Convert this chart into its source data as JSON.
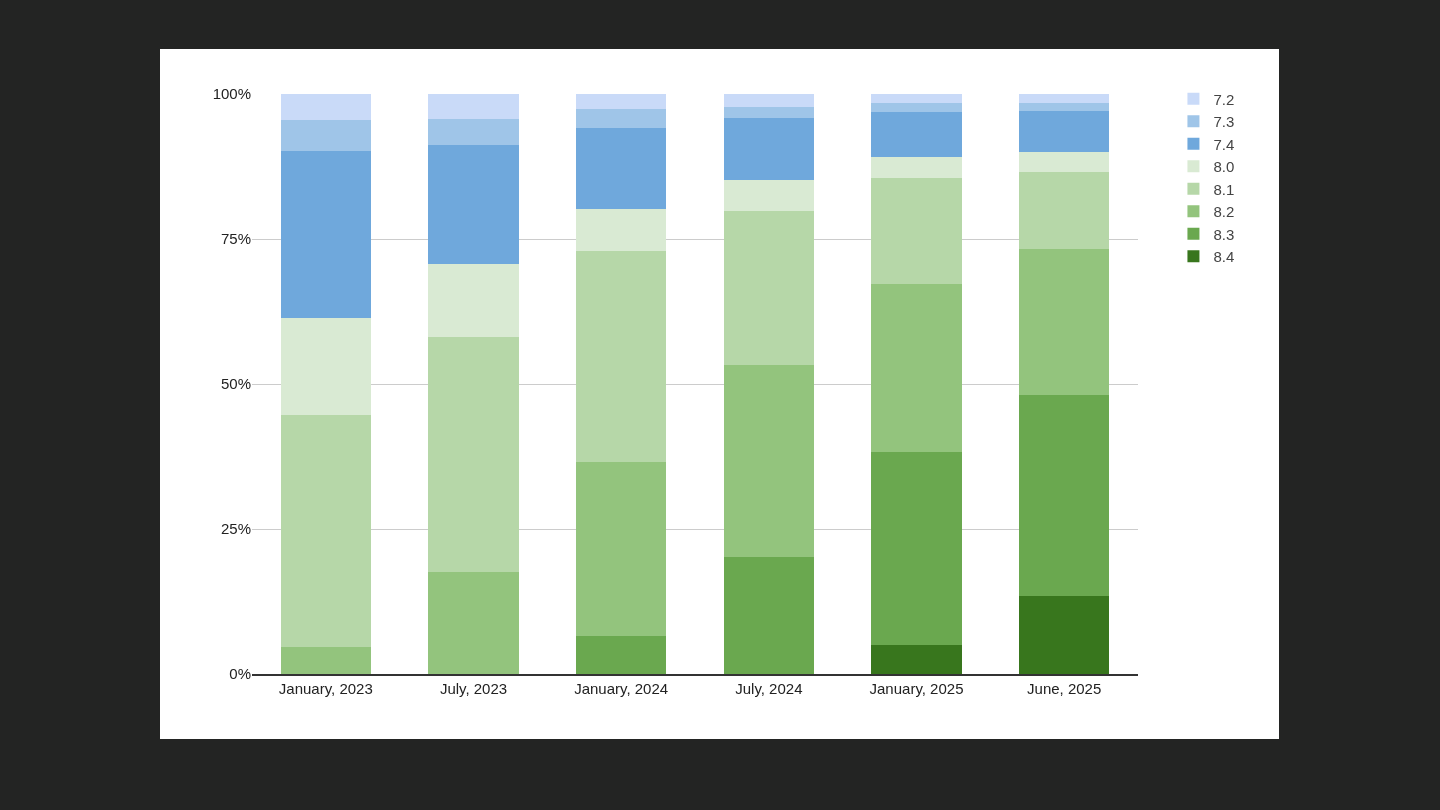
{
  "chart_data": {
    "type": "bar",
    "stacked": true,
    "categories": [
      "January, 2023",
      "July, 2023",
      "January, 2024",
      "July, 2024",
      "January, 2025",
      "June, 2025"
    ],
    "series": [
      {
        "name": "8.4",
        "color": "#38761d",
        "values": [
          null,
          null,
          null,
          null,
          5.0,
          13.4
        ]
      },
      {
        "name": "8.3",
        "color": "#6aa84f",
        "values": [
          null,
          null,
          6.6,
          20.2,
          33.3,
          34.7
        ]
      },
      {
        "name": "8.2",
        "color": "#93c47d",
        "values": [
          4.7,
          17.6,
          30.0,
          33.1,
          28.9,
          25.2
        ]
      },
      {
        "name": "8.1",
        "color": "#b6d7a8",
        "values": [
          40.0,
          40.5,
          36.3,
          26.5,
          18.3,
          13.3
        ]
      },
      {
        "name": "8.0",
        "color": "#d9ead3",
        "values": [
          16.7,
          12.6,
          7.3,
          5.4,
          3.6,
          3.4
        ]
      },
      {
        "name": "7.4",
        "color": "#6fa8dc",
        "values": [
          28.8,
          20.5,
          13.9,
          10.7,
          7.8,
          7.1
        ]
      },
      {
        "name": "7.3",
        "color": "#9fc5e8",
        "values": [
          5.3,
          4.5,
          3.3,
          1.9,
          1.5,
          1.3
        ]
      },
      {
        "name": "7.2",
        "color": "#c9daf8",
        "values": [
          4.5,
          4.3,
          2.6,
          2.2,
          1.6,
          1.6
        ]
      }
    ],
    "ylim": [
      0,
      100
    ],
    "yticks": [
      {
        "value": 0,
        "label": "0%"
      },
      {
        "value": 25,
        "label": "25%"
      },
      {
        "value": 50,
        "label": "50%"
      },
      {
        "value": 75,
        "label": "75%"
      },
      {
        "value": 100,
        "label": "100%"
      }
    ],
    "grid": "y",
    "legend": "top right"
  }
}
